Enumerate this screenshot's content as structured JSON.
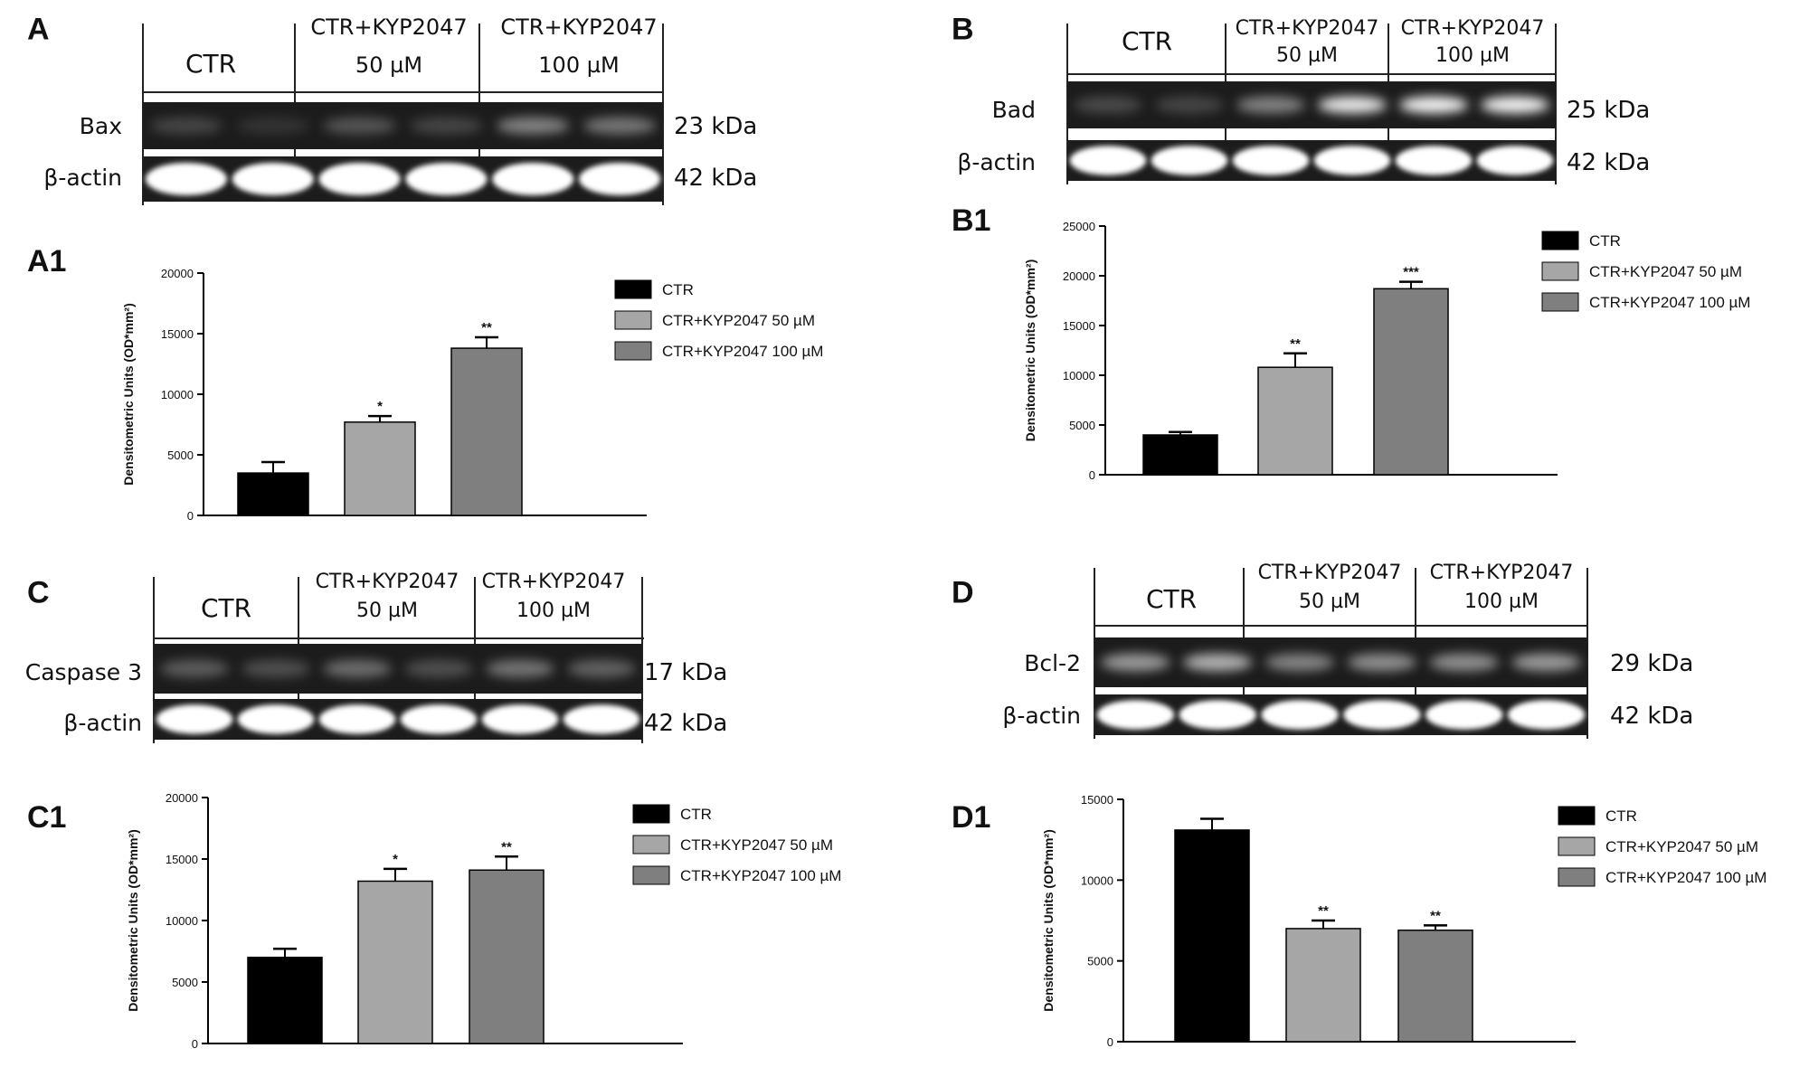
{
  "figure": {
    "panels": [
      {
        "blot": {
          "letter": "A",
          "columns": [
            {
              "line1": "CTR",
              "line2": ""
            },
            {
              "line1": "CTR+KYP2047",
              "line2": "50 µM"
            },
            {
              "line1": "CTR+KYP2047",
              "line2": "100 µM"
            }
          ],
          "target": {
            "label": "Bax",
            "size": "23 kDa"
          },
          "control": {
            "label": "β-actin",
            "size": "42 kDa"
          }
        },
        "chart": {
          "letter": "A1",
          "ylabel": "Densitometric Units (OD*mm²)",
          "yticks": [
            "0",
            "5000",
            "10000",
            "15000",
            "20000"
          ],
          "legend": [
            "CTR",
            "CTR+KYP2047 50 µM",
            "CTR+KYP2047 100 µM"
          ],
          "significance": [
            "",
            "*",
            "**"
          ]
        }
      },
      {
        "blot": {
          "letter": "B",
          "columns": [
            {
              "line1": "CTR",
              "line2": ""
            },
            {
              "line1": "CTR+KYP2047",
              "line2": "50 µM"
            },
            {
              "line1": "CTR+KYP2047",
              "line2": "100 µM"
            }
          ],
          "target": {
            "label": "Bad",
            "size": "25 kDa"
          },
          "control": {
            "label": "β-actin",
            "size": "42 kDa"
          }
        },
        "chart": {
          "letter": "B1",
          "ylabel": "Densitometric Units (OD*mm²)",
          "yticks": [
            "0",
            "5000",
            "10000",
            "15000",
            "20000",
            "25000"
          ],
          "legend": [
            "CTR",
            "CTR+KYP2047 50 µM",
            "CTR+KYP2047 100 µM"
          ],
          "significance": [
            "",
            "**",
            "***"
          ]
        }
      },
      {
        "blot": {
          "letter": "C",
          "columns": [
            {
              "line1": "CTR",
              "line2": ""
            },
            {
              "line1": "CTR+KYP2047",
              "line2": "50 µM"
            },
            {
              "line1": "CTR+KYP2047",
              "line2": "100 µM"
            }
          ],
          "target": {
            "label": "Caspase 3",
            "size": "17 kDa"
          },
          "control": {
            "label": "β-actin",
            "size": "42 kDa"
          }
        },
        "chart": {
          "letter": "C1",
          "ylabel": "Densitometric Units (OD*mm²)",
          "yticks": [
            "0",
            "5000",
            "10000",
            "15000",
            "20000"
          ],
          "legend": [
            "CTR",
            "CTR+KYP2047 50 µM",
            "CTR+KYP2047 100 µM"
          ],
          "significance": [
            "",
            "*",
            "**"
          ]
        }
      },
      {
        "blot": {
          "letter": "D",
          "columns": [
            {
              "line1": "CTR",
              "line2": ""
            },
            {
              "line1": "CTR+KYP2047",
              "line2": "50 µM"
            },
            {
              "line1": "CTR+KYP2047",
              "line2": "100 µM"
            }
          ],
          "target": {
            "label": "Bcl-2",
            "size": "29 kDa"
          },
          "control": {
            "label": "β-actin",
            "size": "42 kDa"
          }
        },
        "chart": {
          "letter": "D1",
          "ylabel": "Densitometric Units (OD*mm²)",
          "yticks": [
            "0",
            "5000",
            "10000",
            "15000"
          ],
          "legend": [
            "CTR",
            "CTR+KYP2047 50 µM",
            "CTR+KYP2047 100 µM"
          ],
          "significance": [
            "",
            "**",
            "**"
          ]
        }
      }
    ]
  },
  "colors": {
    "ctr": "#000000",
    "kyp50": "#a6a6a6",
    "kyp100": "#7f7f7f",
    "blot_background": "#1c1c1c",
    "band": "#ffffff"
  },
  "chart_data": [
    {
      "type": "bar",
      "categories": [
        "CTR",
        "CTR+KYP2047 50 µM",
        "CTR+KYP2047 100 µM"
      ],
      "values": [
        3500,
        7700,
        13800
      ],
      "errors": [
        900,
        500,
        900
      ],
      "ylim": [
        0,
        20000
      ],
      "ylabel": "Densitometric Units (OD*mm²)",
      "legend": "right"
    },
    {
      "type": "bar",
      "categories": [
        "CTR",
        "CTR+KYP2047 50 µM",
        "CTR+KYP2047 100 µM"
      ],
      "values": [
        4000,
        10800,
        18700
      ],
      "errors": [
        300,
        1400,
        700
      ],
      "ylim": [
        0,
        25000
      ],
      "ylabel": "Densitometric Units (OD*mm²)",
      "legend": "right"
    },
    {
      "type": "bar",
      "categories": [
        "CTR",
        "CTR+KYP2047 50 µM",
        "CTR+KYP2047 100 µM"
      ],
      "values": [
        7000,
        13200,
        14100
      ],
      "errors": [
        700,
        1000,
        1100
      ],
      "ylim": [
        0,
        20000
      ],
      "ylabel": "Densitometric Units (OD*mm²)",
      "legend": "right"
    },
    {
      "type": "bar",
      "categories": [
        "CTR",
        "CTR+KYP2047 50 µM",
        "CTR+KYP2047 100 µM"
      ],
      "values": [
        13100,
        7000,
        6900
      ],
      "errors": [
        700,
        500,
        300
      ],
      "ylim": [
        0,
        15000
      ],
      "ylabel": "Densitometric Units (OD*mm²)",
      "legend": "right"
    }
  ]
}
